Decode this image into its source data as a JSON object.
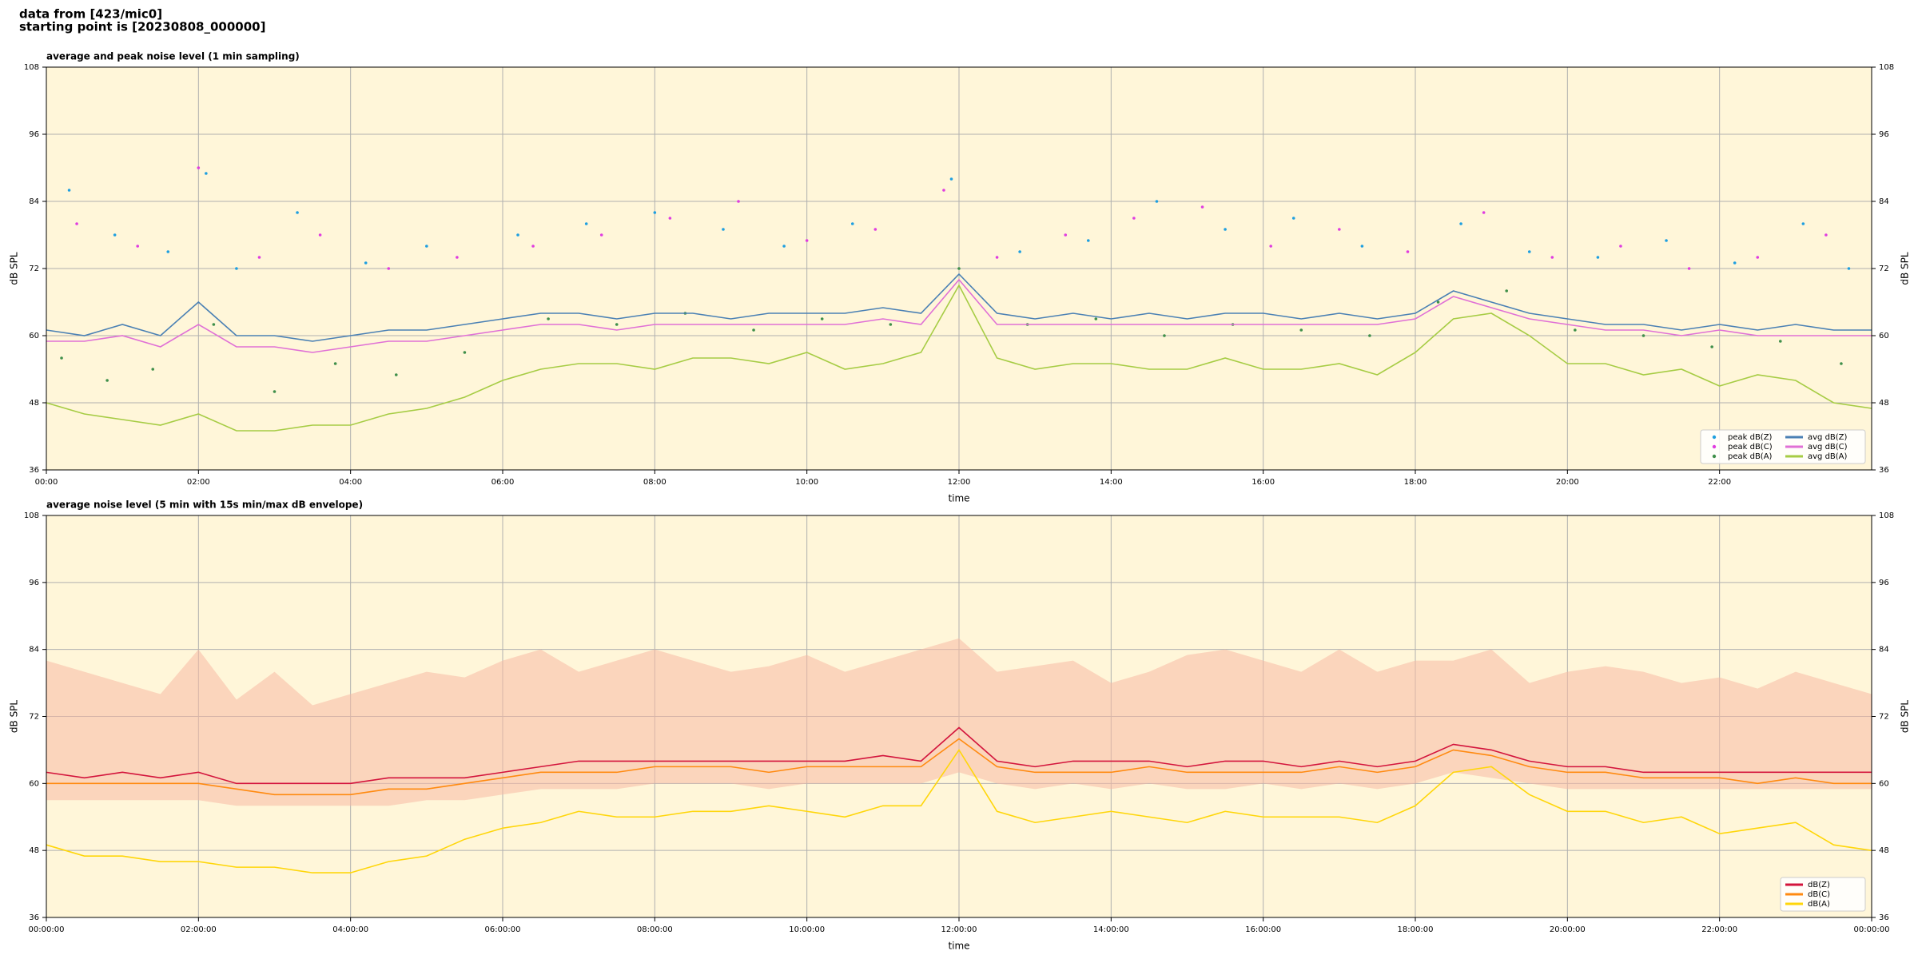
{
  "title": [
    "data from [423/mic0]",
    "starting point is [20230808_000000]"
  ],
  "chart_data": [
    {
      "type": "line",
      "title": "average and peak noise level (1 min sampling)",
      "xlabel": "time",
      "ylabel": "dB SPL",
      "xlim": [
        0,
        24
      ],
      "ylim": [
        36,
        108
      ],
      "yticks": [
        36,
        48,
        60,
        72,
        84,
        96,
        108
      ],
      "xticks": [
        {
          "value": 0,
          "label": "00:00"
        },
        {
          "value": 2,
          "label": "02:00"
        },
        {
          "value": 4,
          "label": "04:00"
        },
        {
          "value": 6,
          "label": "06:00"
        },
        {
          "value": 8,
          "label": "08:00"
        },
        {
          "value": 10,
          "label": "10:00"
        },
        {
          "value": 12,
          "label": "12:00"
        },
        {
          "value": 14,
          "label": "14:00"
        },
        {
          "value": 16,
          "label": "16:00"
        },
        {
          "value": 18,
          "label": "18:00"
        },
        {
          "value": 20,
          "label": "20:00"
        },
        {
          "value": 22,
          "label": "22:00"
        }
      ],
      "grid": true,
      "facecolor": "#fff6d9",
      "legend": "lower right",
      "legend_columns": 2,
      "x": [
        0,
        0.5,
        1,
        1.5,
        2,
        2.5,
        3,
        3.5,
        4,
        4.5,
        5,
        5.5,
        6,
        6.5,
        7,
        7.5,
        8,
        8.5,
        9,
        9.5,
        10,
        10.5,
        11,
        11.5,
        12,
        12.5,
        13,
        13.5,
        14,
        14.5,
        15,
        15.5,
        16,
        16.5,
        17,
        17.5,
        18,
        18.5,
        19,
        19.5,
        20,
        20.5,
        21,
        21.5,
        22,
        22.5,
        23,
        23.5,
        24
      ],
      "series": [
        {
          "name": "peak dB(Z)",
          "style": "points",
          "color": "#1e9fe0",
          "x": [
            0.3,
            0.9,
            1.6,
            2.1,
            2.5,
            3.3,
            4.2,
            5.0,
            6.2,
            7.1,
            8.0,
            8.9,
            9.7,
            10.6,
            11.9,
            12.8,
            13.7,
            14.6,
            15.5,
            16.4,
            17.3,
            18.6,
            19.5,
            20.4,
            21.3,
            22.2,
            23.1,
            23.7
          ],
          "values": [
            86,
            78,
            75,
            89,
            72,
            82,
            73,
            76,
            78,
            80,
            82,
            79,
            76,
            80,
            88,
            75,
            77,
            84,
            79,
            81,
            76,
            80,
            75,
            74,
            77,
            73,
            80,
            72
          ]
        },
        {
          "name": "peak dB(C)",
          "style": "points",
          "color": "#e03ce0",
          "x": [
            0.4,
            1.2,
            2.0,
            2.8,
            3.6,
            4.5,
            5.4,
            6.4,
            7.3,
            8.2,
            9.1,
            10.0,
            10.9,
            11.8,
            12.5,
            13.4,
            14.3,
            15.2,
            16.1,
            17.0,
            17.9,
            18.9,
            19.8,
            20.7,
            21.6,
            22.5,
            23.4
          ],
          "values": [
            80,
            76,
            90,
            74,
            78,
            72,
            74,
            76,
            78,
            81,
            84,
            77,
            79,
            86,
            74,
            78,
            81,
            83,
            76,
            79,
            75,
            82,
            74,
            76,
            72,
            74,
            78
          ]
        },
        {
          "name": "peak dB(A)",
          "style": "points",
          "color": "#3f8f4a",
          "x": [
            0.2,
            0.8,
            1.4,
            2.2,
            3.0,
            3.8,
            4.6,
            5.5,
            6.6,
            7.5,
            8.4,
            9.3,
            10.2,
            11.1,
            12.0,
            12.9,
            13.8,
            14.7,
            15.6,
            16.5,
            17.4,
            18.3,
            19.2,
            20.1,
            21.0,
            21.9,
            22.8,
            23.6
          ],
          "values": [
            56,
            52,
            54,
            62,
            50,
            55,
            53,
            57,
            63,
            62,
            64,
            61,
            63,
            62,
            72,
            62,
            63,
            60,
            62,
            61,
            60,
            66,
            68,
            61,
            60,
            58,
            59,
            55
          ]
        },
        {
          "name": "avg dB(Z)",
          "style": "line",
          "color": "#4a80b4",
          "values": [
            61,
            60,
            62,
            60,
            66,
            60,
            60,
            59,
            60,
            61,
            61,
            62,
            63,
            64,
            64,
            63,
            64,
            64,
            63,
            64,
            64,
            64,
            65,
            64,
            71,
            64,
            63,
            64,
            63,
            64,
            63,
            64,
            64,
            63,
            64,
            63,
            64,
            68,
            66,
            64,
            63,
            62,
            62,
            61,
            62,
            61,
            62,
            61,
            61
          ]
        },
        {
          "name": "avg dB(C)",
          "style": "line",
          "color": "#e070d6",
          "values": [
            59,
            59,
            60,
            58,
            62,
            58,
            58,
            57,
            58,
            59,
            59,
            60,
            61,
            62,
            62,
            61,
            62,
            62,
            62,
            62,
            62,
            62,
            63,
            62,
            70,
            62,
            62,
            62,
            62,
            62,
            62,
            62,
            62,
            62,
            62,
            62,
            63,
            67,
            65,
            63,
            62,
            61,
            61,
            60,
            61,
            60,
            60,
            60,
            60
          ]
        },
        {
          "name": "avg dB(A)",
          "style": "line",
          "color": "#a6cc44",
          "values": [
            48,
            46,
            45,
            44,
            46,
            43,
            43,
            44,
            44,
            46,
            47,
            49,
            52,
            54,
            55,
            55,
            54,
            56,
            56,
            55,
            57,
            54,
            55,
            57,
            69,
            56,
            54,
            55,
            55,
            54,
            54,
            56,
            54,
            54,
            55,
            53,
            57,
            63,
            64,
            60,
            55,
            55,
            53,
            54,
            51,
            53,
            52,
            48,
            47
          ]
        }
      ]
    },
    {
      "type": "line",
      "title": "average noise level (5 min with 15s min/max dB envelope)",
      "xlabel": "time",
      "ylabel": "dB SPL",
      "xlim": [
        0,
        24
      ],
      "ylim": [
        36,
        108
      ],
      "yticks": [
        36,
        48,
        60,
        72,
        84,
        96,
        108
      ],
      "xticks": [
        {
          "value": 0,
          "label": "00:00:00"
        },
        {
          "value": 2,
          "label": "02:00:00"
        },
        {
          "value": 4,
          "label": "04:00:00"
        },
        {
          "value": 6,
          "label": "06:00:00"
        },
        {
          "value": 8,
          "label": "08:00:00"
        },
        {
          "value": 10,
          "label": "10:00:00"
        },
        {
          "value": 12,
          "label": "12:00:00"
        },
        {
          "value": 14,
          "label": "14:00:00"
        },
        {
          "value": 16,
          "label": "16:00:00"
        },
        {
          "value": 18,
          "label": "18:00:00"
        },
        {
          "value": 20,
          "label": "20:00:00"
        },
        {
          "value": 22,
          "label": "22:00:00"
        },
        {
          "value": 24,
          "label": "00:00:00"
        }
      ],
      "grid": true,
      "facecolor": "#fff6d9",
      "legend": "lower right",
      "legend_columns": 1,
      "x": [
        0,
        0.5,
        1,
        1.5,
        2,
        2.5,
        3,
        3.5,
        4,
        4.5,
        5,
        5.5,
        6,
        6.5,
        7,
        7.5,
        8,
        8.5,
        9,
        9.5,
        10,
        10.5,
        11,
        11.5,
        12,
        12.5,
        13,
        13.5,
        14,
        14.5,
        15,
        15.5,
        16,
        16.5,
        17,
        17.5,
        18,
        18.5,
        19,
        19.5,
        20,
        20.5,
        21,
        21.5,
        22,
        22.5,
        23,
        23.5,
        24
      ],
      "envelope": {
        "color": "#f7b9a4",
        "min": [
          57,
          57,
          57,
          57,
          57,
          56,
          56,
          56,
          56,
          56,
          57,
          57,
          58,
          59,
          59,
          59,
          60,
          60,
          60,
          59,
          60,
          60,
          60,
          60,
          62,
          60,
          59,
          60,
          59,
          60,
          59,
          59,
          60,
          59,
          60,
          59,
          60,
          62,
          61,
          60,
          59,
          59,
          59,
          59,
          59,
          59,
          59,
          59,
          59
        ],
        "max": [
          82,
          80,
          78,
          76,
          84,
          75,
          80,
          74,
          76,
          78,
          80,
          79,
          82,
          84,
          80,
          82,
          84,
          82,
          80,
          81,
          83,
          80,
          82,
          84,
          86,
          80,
          81,
          82,
          78,
          80,
          83,
          84,
          82,
          80,
          84,
          80,
          82,
          82,
          84,
          78,
          80,
          81,
          80,
          78,
          79,
          77,
          80,
          78,
          76
        ]
      },
      "series": [
        {
          "name": "dB(Z)",
          "style": "line",
          "color": "#d3143c",
          "values": [
            62,
            61,
            62,
            61,
            62,
            60,
            60,
            60,
            60,
            61,
            61,
            61,
            62,
            63,
            64,
            64,
            64,
            64,
            64,
            64,
            64,
            64,
            65,
            64,
            70,
            64,
            63,
            64,
            64,
            64,
            63,
            64,
            64,
            63,
            64,
            63,
            64,
            67,
            66,
            64,
            63,
            63,
            62,
            62,
            62,
            62,
            62,
            62,
            62
          ]
        },
        {
          "name": "dB(C)",
          "style": "line",
          "color": "#ff8a10",
          "values": [
            60,
            60,
            60,
            60,
            60,
            59,
            58,
            58,
            58,
            59,
            59,
            60,
            61,
            62,
            62,
            62,
            63,
            63,
            63,
            62,
            63,
            63,
            63,
            63,
            68,
            63,
            62,
            62,
            62,
            63,
            62,
            62,
            62,
            62,
            63,
            62,
            63,
            66,
            65,
            63,
            62,
            62,
            61,
            61,
            61,
            60,
            61,
            60,
            60
          ]
        },
        {
          "name": "dB(A)",
          "style": "line",
          "color": "#ffd60a",
          "values": [
            49,
            47,
            47,
            46,
            46,
            45,
            45,
            44,
            44,
            46,
            47,
            50,
            52,
            53,
            55,
            54,
            54,
            55,
            55,
            56,
            55,
            54,
            56,
            56,
            66,
            55,
            53,
            54,
            55,
            54,
            53,
            55,
            54,
            54,
            54,
            53,
            56,
            62,
            63,
            58,
            55,
            55,
            53,
            54,
            51,
            52,
            53,
            49,
            48
          ]
        }
      ]
    }
  ]
}
